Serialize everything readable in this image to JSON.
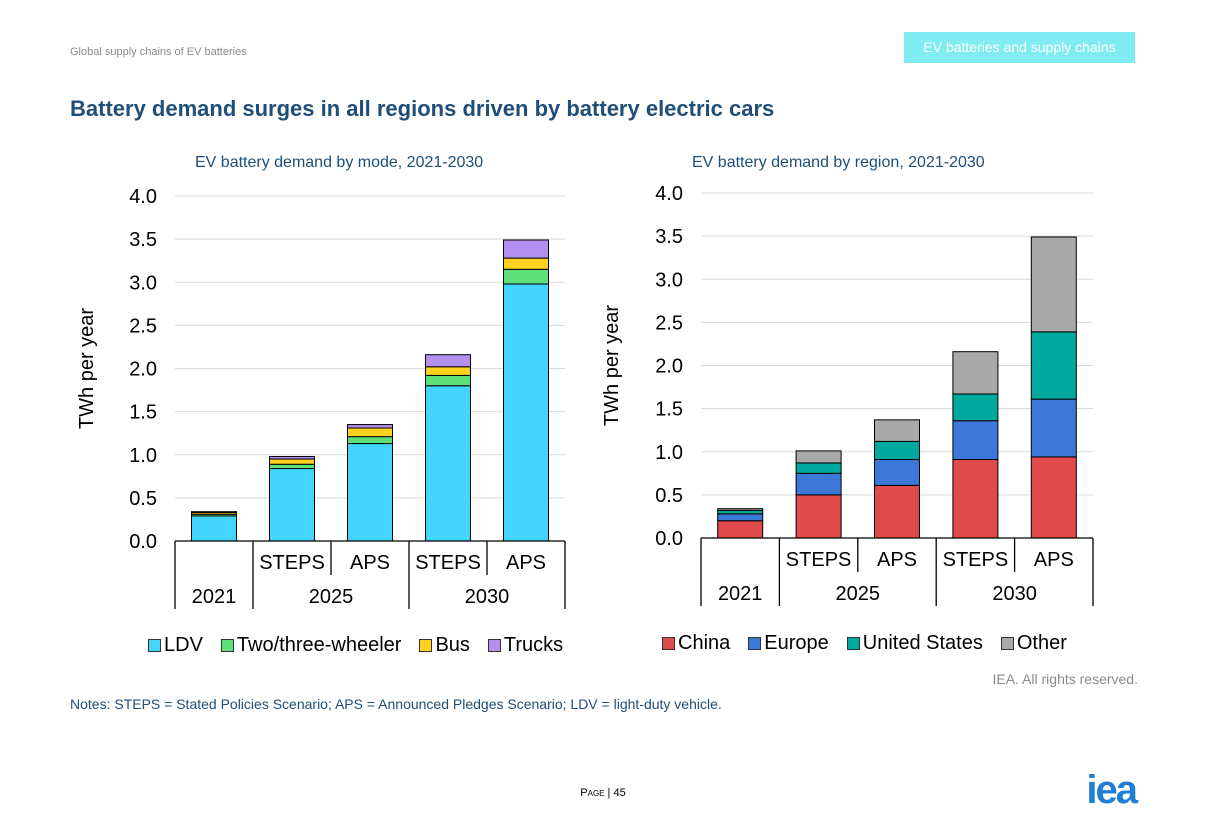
{
  "header": {
    "section": "Global supply chains of EV batteries",
    "badge": "EV batteries and supply chains"
  },
  "page_title": "Battery demand surges in all regions driven by battery electric cars",
  "chart_data": [
    {
      "type": "bar",
      "stacked": true,
      "title": "EV battery demand by mode, 2021-2030",
      "ylabel": "TWh per year",
      "ylim": [
        0,
        4.0
      ],
      "yticks": [
        "0.0",
        "0.5",
        "1.0",
        "1.5",
        "2.0",
        "2.5",
        "3.0",
        "3.5",
        "4.0"
      ],
      "categories": [
        "",
        "STEPS",
        "APS",
        "STEPS",
        "APS"
      ],
      "groups": [
        {
          "label": "2021",
          "span": 1
        },
        {
          "label": "2025",
          "span": 2
        },
        {
          "label": "2030",
          "span": 2
        }
      ],
      "series": [
        {
          "name": "LDV",
          "color": "#44d5ff",
          "values": [
            0.29,
            0.84,
            1.13,
            1.8,
            2.98
          ]
        },
        {
          "name": "Two/three-wheeler",
          "color": "#5de07a",
          "values": [
            0.02,
            0.05,
            0.08,
            0.12,
            0.17
          ]
        },
        {
          "name": "Bus",
          "color": "#ffd21f",
          "values": [
            0.02,
            0.06,
            0.1,
            0.1,
            0.13
          ]
        },
        {
          "name": "Trucks",
          "color": "#b38ff0",
          "values": [
            0.01,
            0.03,
            0.04,
            0.14,
            0.21
          ]
        }
      ],
      "legend": "bottom"
    },
    {
      "type": "bar",
      "stacked": true,
      "title": "EV battery demand by region, 2021-2030",
      "ylabel": "TWh per year",
      "ylim": [
        0,
        4.0
      ],
      "yticks": [
        "0.0",
        "0.5",
        "1.0",
        "1.5",
        "2.0",
        "2.5",
        "3.0",
        "3.5",
        "4.0"
      ],
      "categories": [
        "",
        "STEPS",
        "APS",
        "STEPS",
        "APS"
      ],
      "groups": [
        {
          "label": "2021",
          "span": 1
        },
        {
          "label": "2025",
          "span": 2
        },
        {
          "label": "2030",
          "span": 2
        }
      ],
      "series": [
        {
          "name": "China",
          "color": "#e04a4a",
          "values": [
            0.2,
            0.5,
            0.61,
            0.91,
            0.94
          ]
        },
        {
          "name": "Europe",
          "color": "#3c78d8",
          "values": [
            0.08,
            0.25,
            0.3,
            0.45,
            0.67
          ]
        },
        {
          "name": "United States",
          "color": "#00a99d",
          "values": [
            0.04,
            0.12,
            0.21,
            0.31,
            0.78
          ]
        },
        {
          "name": "Other",
          "color": "#a9a9a9",
          "values": [
            0.02,
            0.14,
            0.25,
            0.49,
            1.1
          ]
        }
      ],
      "legend": "bottom"
    }
  ],
  "rights": "IEA. All rights reserved.",
  "notes": "Notes: STEPS = Stated Policies Scenario; APS = Announced Pledges Scenario; LDV = light-duty vehicle.",
  "page": {
    "prefix": "Page",
    "number": "45"
  },
  "logo": "iea"
}
